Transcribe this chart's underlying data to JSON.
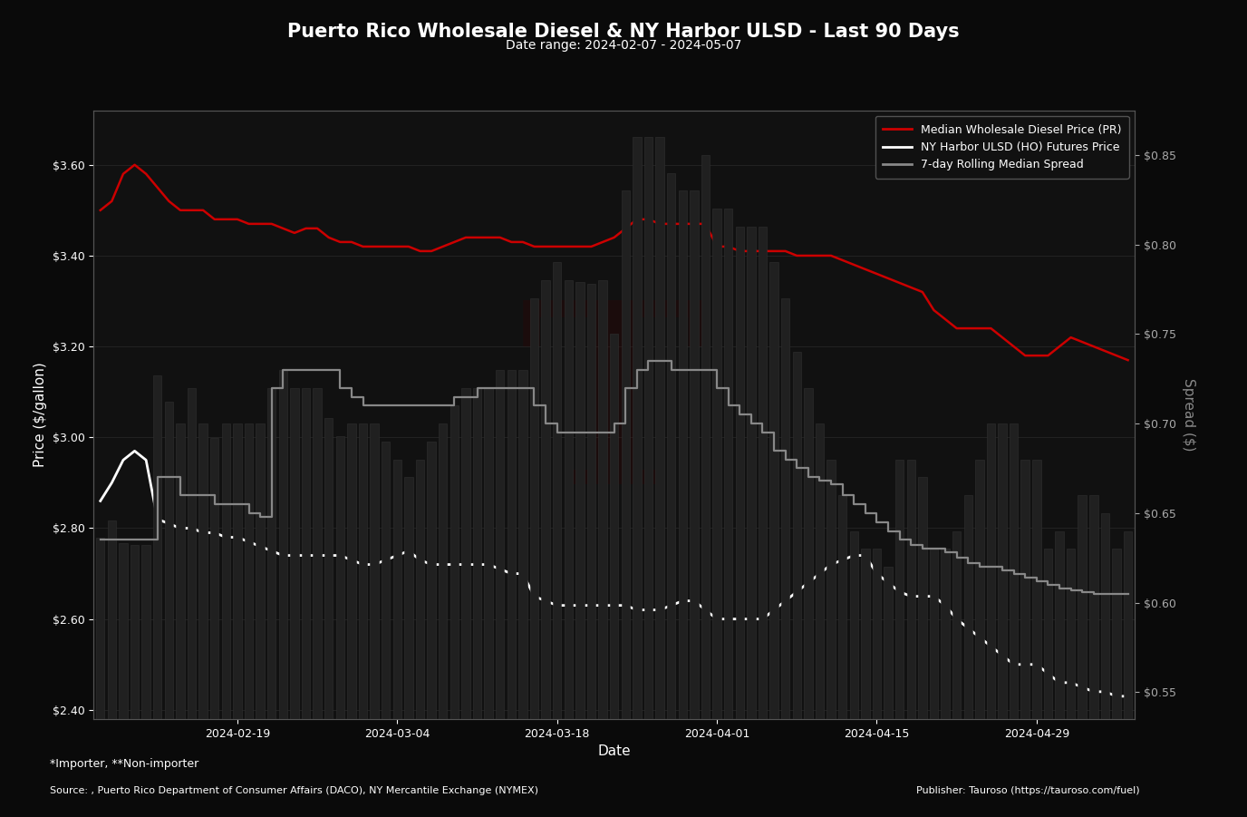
{
  "title": "Puerto Rico Wholesale Diesel & NY Harbor ULSD - Last 90 Days",
  "subtitle": "Date range: 2024-02-07 - 2024-05-07",
  "xlabel": "Date",
  "ylabel_left": "Price ($/gallon)",
  "ylabel_right": "Spread ($)",
  "footnote1": "*Importer, **Non-importer",
  "footnote2": "Source: , Puerto Rico Department of Consumer Affairs (DACO), NY Mercantile Exchange (NYMEX)",
  "footnote3": "Publisher: Tauroso (https://tauroso.com/fuel)",
  "background_color": "#0a0a0a",
  "plot_bg_color": "#111111",
  "grid_color": "#2a2a2a",
  "legend_labels": [
    "Median Wholesale Diesel Price (PR)",
    "NY Harbor ULSD (HO) Futures Price",
    "7-day Rolling Median Spread"
  ],
  "legend_colors": [
    "#cc0000",
    "#ffffff",
    "#888888"
  ],
  "ylim_left": [
    2.38,
    3.72
  ],
  "ylim_right": [
    0.535,
    0.875
  ],
  "dates": [
    "2024-02-07",
    "2024-02-08",
    "2024-02-09",
    "2024-02-10",
    "2024-02-11",
    "2024-02-12",
    "2024-02-13",
    "2024-02-14",
    "2024-02-15",
    "2024-02-16",
    "2024-02-17",
    "2024-02-18",
    "2024-02-19",
    "2024-02-20",
    "2024-02-21",
    "2024-02-22",
    "2024-02-23",
    "2024-02-24",
    "2024-02-25",
    "2024-02-26",
    "2024-02-27",
    "2024-02-28",
    "2024-02-29",
    "2024-03-01",
    "2024-03-02",
    "2024-03-03",
    "2024-03-04",
    "2024-03-05",
    "2024-03-06",
    "2024-03-07",
    "2024-03-08",
    "2024-03-09",
    "2024-03-10",
    "2024-03-11",
    "2024-03-12",
    "2024-03-13",
    "2024-03-14",
    "2024-03-15",
    "2024-03-16",
    "2024-03-17",
    "2024-03-18",
    "2024-03-19",
    "2024-03-20",
    "2024-03-21",
    "2024-03-22",
    "2024-03-23",
    "2024-03-24",
    "2024-03-25",
    "2024-03-26",
    "2024-03-27",
    "2024-03-28",
    "2024-03-29",
    "2024-03-30",
    "2024-03-31",
    "2024-04-01",
    "2024-04-02",
    "2024-04-03",
    "2024-04-04",
    "2024-04-05",
    "2024-04-06",
    "2024-04-07",
    "2024-04-08",
    "2024-04-09",
    "2024-04-10",
    "2024-04-11",
    "2024-04-12",
    "2024-04-13",
    "2024-04-14",
    "2024-04-15",
    "2024-04-16",
    "2024-04-17",
    "2024-04-18",
    "2024-04-19",
    "2024-04-20",
    "2024-04-21",
    "2024-04-22",
    "2024-04-23",
    "2024-04-24",
    "2024-04-25",
    "2024-04-26",
    "2024-04-27",
    "2024-04-28",
    "2024-04-29",
    "2024-04-30",
    "2024-05-01",
    "2024-05-02",
    "2024-05-03",
    "2024-05-04",
    "2024-05-05",
    "2024-05-06",
    "2024-05-07"
  ],
  "diesel_price": [
    3.5,
    3.52,
    3.58,
    3.6,
    3.58,
    3.55,
    3.52,
    3.5,
    3.5,
    3.5,
    3.48,
    3.48,
    3.48,
    3.47,
    3.47,
    3.47,
    3.46,
    3.45,
    3.46,
    3.46,
    3.44,
    3.43,
    3.43,
    3.42,
    3.42,
    3.42,
    3.42,
    3.42,
    3.41,
    3.41,
    3.42,
    3.43,
    3.44,
    3.44,
    3.44,
    3.44,
    3.43,
    3.43,
    3.42,
    3.42,
    3.42,
    3.42,
    3.42,
    3.42,
    3.43,
    3.44,
    3.46,
    3.48,
    3.48,
    3.47,
    3.47,
    3.47,
    3.47,
    3.47,
    3.42,
    3.42,
    3.41,
    3.41,
    3.41,
    3.41,
    3.41,
    3.4,
    3.4,
    3.4,
    3.4,
    3.39,
    3.38,
    3.37,
    3.36,
    3.35,
    3.34,
    3.33,
    3.32,
    3.28,
    3.26,
    3.24,
    3.24,
    3.24,
    3.24,
    3.22,
    3.2,
    3.18,
    3.18,
    3.18,
    3.2,
    3.22,
    3.21,
    3.2,
    3.19,
    3.18,
    3.17
  ],
  "nyharbor_price": [
    2.86,
    2.9,
    2.95,
    2.97,
    2.95,
    2.82,
    2.81,
    2.8,
    2.8,
    2.79,
    2.79,
    2.78,
    2.78,
    2.77,
    2.76,
    2.75,
    2.74,
    2.74,
    2.74,
    2.74,
    2.74,
    2.74,
    2.73,
    2.72,
    2.72,
    2.73,
    2.74,
    2.75,
    2.73,
    2.72,
    2.72,
    2.72,
    2.72,
    2.72,
    2.72,
    2.71,
    2.7,
    2.7,
    2.65,
    2.64,
    2.63,
    2.63,
    2.63,
    2.63,
    2.63,
    2.63,
    2.63,
    2.62,
    2.62,
    2.62,
    2.63,
    2.64,
    2.64,
    2.62,
    2.6,
    2.6,
    2.6,
    2.6,
    2.6,
    2.62,
    2.64,
    2.66,
    2.68,
    2.7,
    2.72,
    2.73,
    2.74,
    2.74,
    2.7,
    2.68,
    2.66,
    2.65,
    2.65,
    2.65,
    2.63,
    2.6,
    2.58,
    2.56,
    2.54,
    2.52,
    2.5,
    2.5,
    2.5,
    2.48,
    2.46,
    2.46,
    2.45,
    2.44,
    2.44,
    2.43,
    2.43
  ],
  "spread_line": [
    0.635,
    0.635,
    0.635,
    0.635,
    0.635,
    0.67,
    0.67,
    0.66,
    0.66,
    0.66,
    0.655,
    0.655,
    0.655,
    0.65,
    0.648,
    0.72,
    0.73,
    0.73,
    0.73,
    0.73,
    0.73,
    0.72,
    0.715,
    0.71,
    0.71,
    0.71,
    0.71,
    0.71,
    0.71,
    0.71,
    0.71,
    0.715,
    0.715,
    0.72,
    0.72,
    0.72,
    0.72,
    0.72,
    0.71,
    0.7,
    0.695,
    0.695,
    0.695,
    0.695,
    0.695,
    0.7,
    0.72,
    0.73,
    0.735,
    0.735,
    0.73,
    0.73,
    0.73,
    0.73,
    0.72,
    0.71,
    0.705,
    0.7,
    0.695,
    0.685,
    0.68,
    0.675,
    0.67,
    0.668,
    0.666,
    0.66,
    0.655,
    0.65,
    0.645,
    0.64,
    0.635,
    0.632,
    0.63,
    0.63,
    0.628,
    0.625,
    0.622,
    0.62,
    0.62,
    0.618,
    0.616,
    0.614,
    0.612,
    0.61,
    0.608,
    0.607,
    0.606,
    0.605,
    0.605,
    0.605,
    0.605
  ],
  "bar_spread": [
    0.636,
    0.646,
    0.633,
    0.632,
    0.632,
    0.727,
    0.712,
    0.7,
    0.72,
    0.7,
    0.692,
    0.7,
    0.7,
    0.7,
    0.7,
    0.72,
    0.73,
    0.72,
    0.72,
    0.72,
    0.703,
    0.693,
    0.7,
    0.7,
    0.7,
    0.69,
    0.68,
    0.67,
    0.68,
    0.69,
    0.7,
    0.71,
    0.72,
    0.72,
    0.72,
    0.73,
    0.73,
    0.73,
    0.77,
    0.78,
    0.79,
    0.78,
    0.779,
    0.778,
    0.78,
    0.75,
    0.83,
    0.86,
    0.86,
    0.86,
    0.84,
    0.83,
    0.83,
    0.85,
    0.82,
    0.82,
    0.81,
    0.81,
    0.81,
    0.79,
    0.77,
    0.74,
    0.72,
    0.7,
    0.68,
    0.66,
    0.64,
    0.63,
    0.63,
    0.62,
    0.68,
    0.68,
    0.67,
    0.63,
    0.63,
    0.64,
    0.66,
    0.68,
    0.7,
    0.7,
    0.7,
    0.68,
    0.68,
    0.63,
    0.64,
    0.63,
    0.66,
    0.66,
    0.65,
    0.63,
    0.64
  ]
}
